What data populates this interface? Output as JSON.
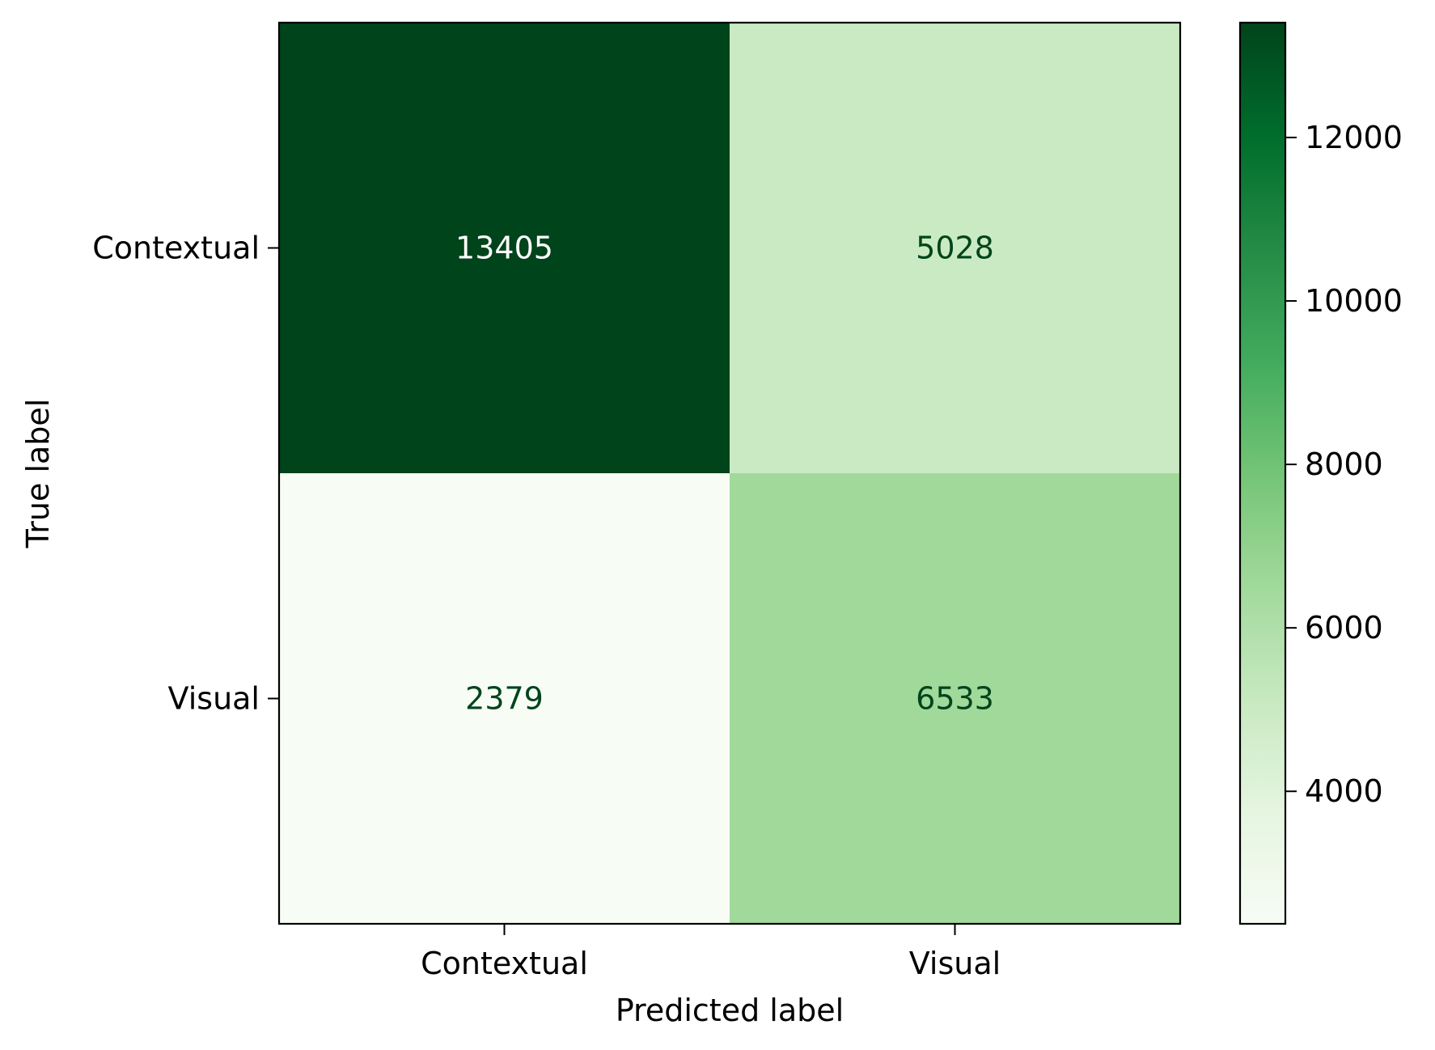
{
  "chart_data": {
    "type": "heatmap",
    "title": "",
    "xlabel": "Predicted label",
    "ylabel": "True label",
    "x_categories": [
      "Contextual",
      "Visual"
    ],
    "y_categories": [
      "Contextual",
      "Visual"
    ],
    "matrix": [
      [
        13405,
        5028
      ],
      [
        2379,
        6533
      ]
    ],
    "value_labels": [
      [
        "13405",
        "5028"
      ],
      [
        "2379",
        "6533"
      ]
    ],
    "colormap": "Greens",
    "colorbar": {
      "range": [
        2379,
        13405
      ],
      "ticks": [
        4000,
        6000,
        8000,
        10000,
        12000
      ],
      "tick_labels": [
        "4000",
        "6000",
        "8000",
        "10000",
        "12000"
      ]
    },
    "text_colors": {
      "on_dark": "#ffffff",
      "on_light": "#00441b"
    }
  }
}
